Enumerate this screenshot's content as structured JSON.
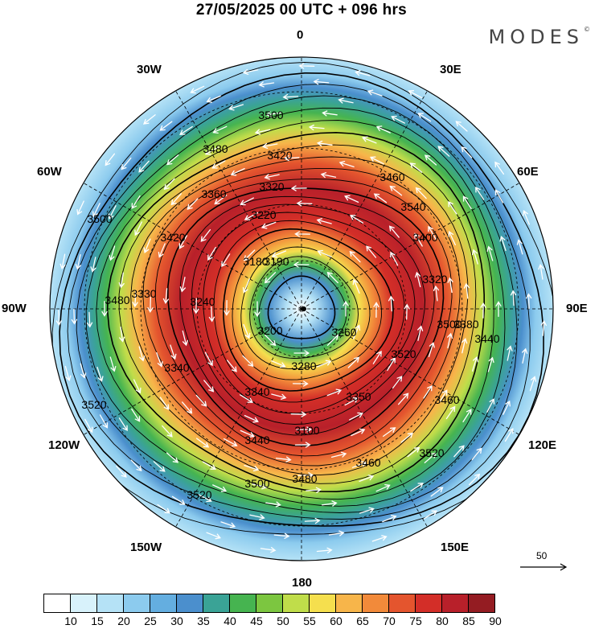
{
  "header": {
    "title": "27/05/2025  00 UTC  + 096 hrs",
    "logo": "MODES"
  },
  "lon_labels": [
    "0",
    "30E",
    "60E",
    "90E",
    "120E",
    "150E",
    "180",
    "150W",
    "120W",
    "90W",
    "60W",
    "30W"
  ],
  "contour_labels": [
    "3500",
    "3480",
    "3420",
    "3320",
    "3360",
    "3220",
    "3540",
    "3460",
    "3400",
    "3320",
    "3500",
    "3440",
    "3520",
    "3380",
    "3260",
    "3350",
    "3460",
    "3100",
    "3440",
    "3460",
    "3520",
    "3480",
    "3500",
    "3520",
    "3520",
    "3500",
    "3480",
    "3330",
    "3340",
    "3340",
    "3280",
    "3240",
    "3180",
    "3190",
    "3200",
    "3420"
  ],
  "colorbar": {
    "ticks": [
      "10",
      "15",
      "20",
      "25",
      "30",
      "35",
      "40",
      "45",
      "50",
      "55",
      "60",
      "65",
      "70",
      "75",
      "80",
      "85",
      "90"
    ],
    "colors": [
      "#ffffff",
      "#d8f2fb",
      "#b5e2f6",
      "#8ccbee",
      "#64aee0",
      "#4b8fcd",
      "#3aa396",
      "#46b450",
      "#7cc640",
      "#c0dd4a",
      "#f5df4e",
      "#f7b54a",
      "#f28a3a",
      "#e4552e",
      "#d32e28",
      "#b8202a",
      "#941c22"
    ]
  },
  "reference_vector": {
    "value": "50"
  },
  "colors": {
    "cold": "#64aee0",
    "jet": "#b8202a"
  }
}
